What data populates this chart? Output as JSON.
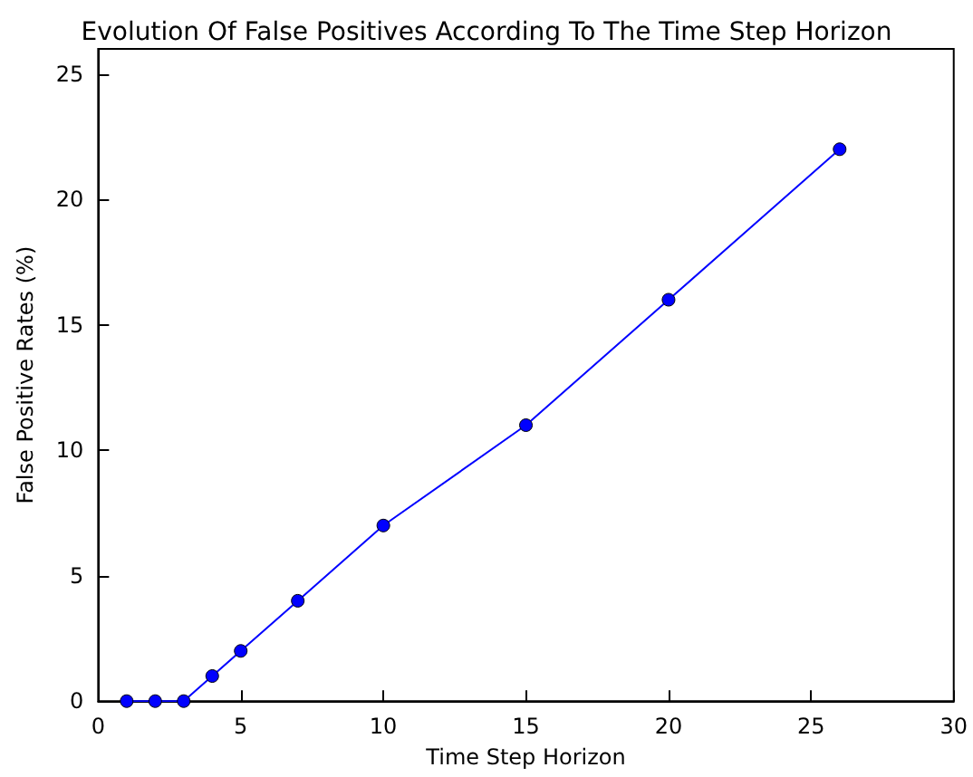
{
  "chart_data": {
    "type": "line",
    "title": "Evolution Of False Positives According To The Time Step Horizon",
    "xlabel": "Time Step Horizon",
    "ylabel": "False Positive Rates (%)",
    "x": [
      1,
      2,
      3,
      4,
      5,
      7,
      10,
      15,
      20,
      26
    ],
    "series": [
      {
        "color": "#0000ff",
        "values": [
          0,
          0,
          0,
          1,
          2,
          4,
          7,
          11,
          16,
          22
        ]
      }
    ],
    "xlim": [
      0,
      30
    ],
    "xticks": [
      0,
      5,
      10,
      15,
      20,
      25,
      30
    ],
    "ylim": [
      0,
      26
    ],
    "yticks": [
      0,
      5,
      10,
      15,
      20,
      25
    ],
    "marker": "circle",
    "line_style": "solid"
  }
}
